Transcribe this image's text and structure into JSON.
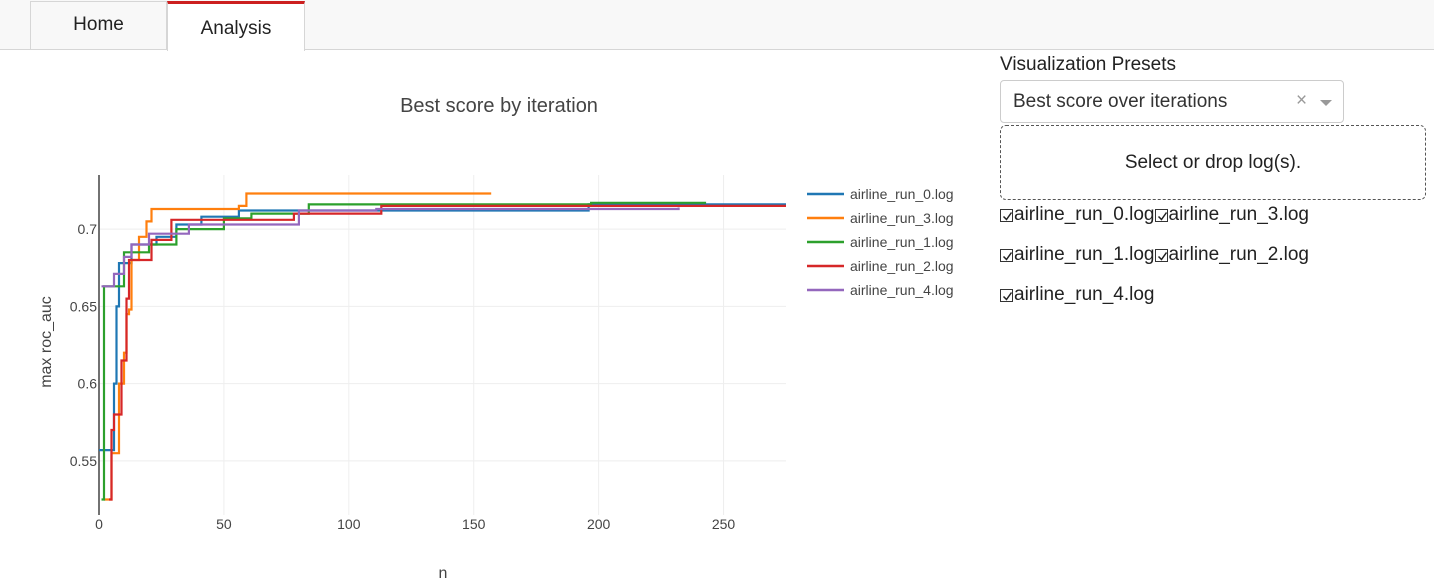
{
  "tabs": [
    {
      "label": "Home",
      "active": false
    },
    {
      "label": "Analysis",
      "active": true
    }
  ],
  "presets": {
    "label": "Visualization Presets",
    "selected": "Best score over iterations",
    "clear_icon": "×"
  },
  "dropzone": {
    "text": "Select or drop log(s)."
  },
  "logs": [
    {
      "label": "airline_run_0.log",
      "checked": true
    },
    {
      "label": "airline_run_3.log",
      "checked": true
    },
    {
      "label": "airline_run_1.log",
      "checked": true
    },
    {
      "label": "airline_run_2.log",
      "checked": true
    },
    {
      "label": "airline_run_4.log",
      "checked": true
    }
  ],
  "colors": {
    "accent_tab": "#cc1f1f"
  },
  "chart_data": {
    "type": "line",
    "title": "Best score by iteration",
    "xlabel": "n",
    "ylabel": "max roc_auc",
    "xlim": [
      0,
      275
    ],
    "ylim": [
      0.515,
      0.735
    ],
    "x_ticks": [
      0,
      50,
      100,
      150,
      200,
      250
    ],
    "y_ticks": [
      0.55,
      0.6,
      0.65,
      0.7
    ],
    "y_tick_labels": [
      "0.55",
      "0.6",
      "0.65",
      "0.7"
    ],
    "grid": true,
    "legend_position": "right",
    "series": [
      {
        "name": "airline_run_0.log",
        "color": "#1f77b4",
        "points": [
          [
            0,
            0.557
          ],
          [
            5,
            0.557
          ],
          [
            6,
            0.6
          ],
          [
            7,
            0.65
          ],
          [
            8,
            0.678
          ],
          [
            12,
            0.678
          ],
          [
            13,
            0.69
          ],
          [
            22,
            0.69
          ],
          [
            23,
            0.695
          ],
          [
            30,
            0.695
          ],
          [
            31,
            0.703
          ],
          [
            40,
            0.703
          ],
          [
            41,
            0.708
          ],
          [
            55,
            0.708
          ],
          [
            56,
            0.712
          ],
          [
            110,
            0.712
          ],
          [
            111,
            0.712
          ],
          [
            195,
            0.712
          ],
          [
            196,
            0.716
          ],
          [
            275,
            0.716
          ]
        ]
      },
      {
        "name": "airline_run_3.log",
        "color": "#ff7f0e",
        "points": [
          [
            2,
            0.525
          ],
          [
            4,
            0.525
          ],
          [
            5,
            0.555
          ],
          [
            7,
            0.555
          ],
          [
            8,
            0.6
          ],
          [
            9,
            0.6
          ],
          [
            10,
            0.62
          ],
          [
            11,
            0.645
          ],
          [
            12,
            0.648
          ],
          [
            13,
            0.68
          ],
          [
            15,
            0.68
          ],
          [
            16,
            0.695
          ],
          [
            18,
            0.695
          ],
          [
            19,
            0.705
          ],
          [
            20,
            0.705
          ],
          [
            21,
            0.713
          ],
          [
            55,
            0.713
          ],
          [
            56,
            0.715
          ],
          [
            58,
            0.715
          ],
          [
            59,
            0.723
          ],
          [
            157,
            0.723
          ]
        ]
      },
      {
        "name": "airline_run_1.log",
        "color": "#2ca02c",
        "points": [
          [
            1,
            0.525
          ],
          [
            2,
            0.663
          ],
          [
            9,
            0.663
          ],
          [
            10,
            0.685
          ],
          [
            12,
            0.685
          ],
          [
            13,
            0.685
          ],
          [
            19,
            0.685
          ],
          [
            20,
            0.69
          ],
          [
            30,
            0.69
          ],
          [
            31,
            0.7
          ],
          [
            49,
            0.7
          ],
          [
            50,
            0.707
          ],
          [
            60,
            0.707
          ],
          [
            61,
            0.71
          ],
          [
            83,
            0.71
          ],
          [
            84,
            0.716
          ],
          [
            196,
            0.716
          ],
          [
            197,
            0.717
          ],
          [
            243,
            0.717
          ]
        ]
      },
      {
        "name": "airline_run_2.log",
        "color": "#d62728",
        "points": [
          [
            4,
            0.525
          ],
          [
            5,
            0.57
          ],
          [
            6,
            0.58
          ],
          [
            8,
            0.58
          ],
          [
            9,
            0.615
          ],
          [
            10,
            0.615
          ],
          [
            11,
            0.655
          ],
          [
            12,
            0.68
          ],
          [
            20,
            0.68
          ],
          [
            21,
            0.693
          ],
          [
            28,
            0.693
          ],
          [
            29,
            0.706
          ],
          [
            77,
            0.706
          ],
          [
            78,
            0.71
          ],
          [
            112,
            0.71
          ],
          [
            113,
            0.715
          ],
          [
            275,
            0.715
          ]
        ]
      },
      {
        "name": "airline_run_4.log",
        "color": "#9467bd",
        "points": [
          [
            1,
            0.663
          ],
          [
            5,
            0.663
          ],
          [
            6,
            0.671
          ],
          [
            9,
            0.671
          ],
          [
            10,
            0.682
          ],
          [
            12,
            0.682
          ],
          [
            13,
            0.69
          ],
          [
            19,
            0.69
          ],
          [
            20,
            0.697
          ],
          [
            35,
            0.697
          ],
          [
            36,
            0.703
          ],
          [
            79,
            0.703
          ],
          [
            80,
            0.712
          ],
          [
            110,
            0.712
          ],
          [
            111,
            0.713
          ],
          [
            232,
            0.714
          ]
        ]
      }
    ]
  }
}
